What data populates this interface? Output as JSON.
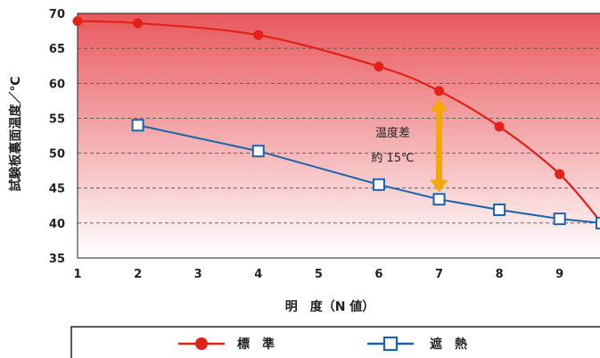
{
  "chart_data": {
    "type": "line",
    "xlabel": "明　度（N 値）",
    "ylabel": "試験板裏面温度／℃",
    "xlim": [
      1,
      9.7
    ],
    "ylim": [
      35,
      70
    ],
    "x_ticks": [
      "1",
      "2",
      "3",
      "4",
      "5",
      "6",
      "7",
      "8",
      "9"
    ],
    "y_ticks": [
      "35",
      "40",
      "45",
      "50",
      "55",
      "60",
      "65",
      "70"
    ],
    "grid": "horizontal-dashed",
    "legend_position": "bottom",
    "series": [
      {
        "name": "標　準",
        "color": "#e32119",
        "marker": "filled-circle",
        "x": [
          1,
          2,
          4,
          6,
          7,
          8,
          9
        ],
        "y": [
          68.9,
          68.6,
          66.9,
          62.4,
          58.9,
          53.8,
          47.0
        ],
        "curve_end": [
          9.7,
          40.0
        ]
      },
      {
        "name": "遮　熱",
        "color": "#1a64ad",
        "marker": "open-square",
        "x": [
          2,
          4,
          6,
          7,
          8,
          9,
          9.7
        ],
        "y": [
          54.0,
          50.3,
          45.5,
          43.4,
          41.9,
          40.6,
          40.0
        ]
      }
    ],
    "annotation": {
      "line1": "温度差",
      "line2": "約 15℃",
      "arrow_x": 7,
      "arrow_from": 44.4,
      "arrow_to": 57.8,
      "arrow_color": "#f5a800"
    },
    "background_gradient": [
      "#e8585c",
      "#ffffff"
    ]
  }
}
